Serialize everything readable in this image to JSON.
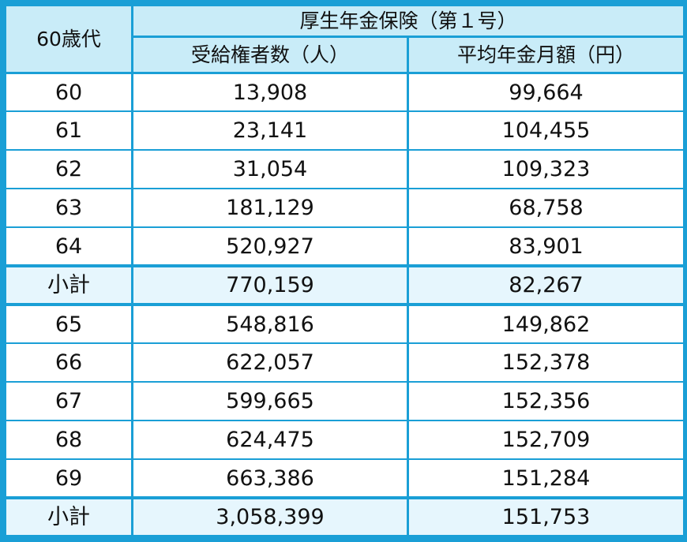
{
  "table": {
    "title": "厚生年金保険（第１号）",
    "row_header": "60歳代",
    "columns": [
      "受給権者数（人）",
      "平均年金月額（円）"
    ],
    "rows": [
      {
        "age": "60",
        "recipients": "13,908",
        "avg_monthly": "99,664",
        "subtotal": false
      },
      {
        "age": "61",
        "recipients": "23,141",
        "avg_monthly": "104,455",
        "subtotal": false
      },
      {
        "age": "62",
        "recipients": "31,054",
        "avg_monthly": "109,323",
        "subtotal": false
      },
      {
        "age": "63",
        "recipients": "181,129",
        "avg_monthly": "68,758",
        "subtotal": false
      },
      {
        "age": "64",
        "recipients": "520,927",
        "avg_monthly": "83,901",
        "subtotal": false
      },
      {
        "age": "小計",
        "recipients": "770,159",
        "avg_monthly": "82,267",
        "subtotal": true
      },
      {
        "age": "65",
        "recipients": "548,816",
        "avg_monthly": "149,862",
        "subtotal": false
      },
      {
        "age": "66",
        "recipients": "622,057",
        "avg_monthly": "152,378",
        "subtotal": false
      },
      {
        "age": "67",
        "recipients": "599,665",
        "avg_monthly": "152,356",
        "subtotal": false
      },
      {
        "age": "68",
        "recipients": "624,475",
        "avg_monthly": "152,709",
        "subtotal": false
      },
      {
        "age": "69",
        "recipients": "663,386",
        "avg_monthly": "151,284",
        "subtotal": false
      },
      {
        "age": "小計",
        "recipients": "3,058,399",
        "avg_monthly": "151,753",
        "subtotal": true
      }
    ]
  },
  "colors": {
    "border": "#1a9fd6",
    "header_bg": "#c9ecf8",
    "subtotal_bg": "#e6f6fd",
    "cell_bg": "#ffffff",
    "text": "#111111"
  }
}
